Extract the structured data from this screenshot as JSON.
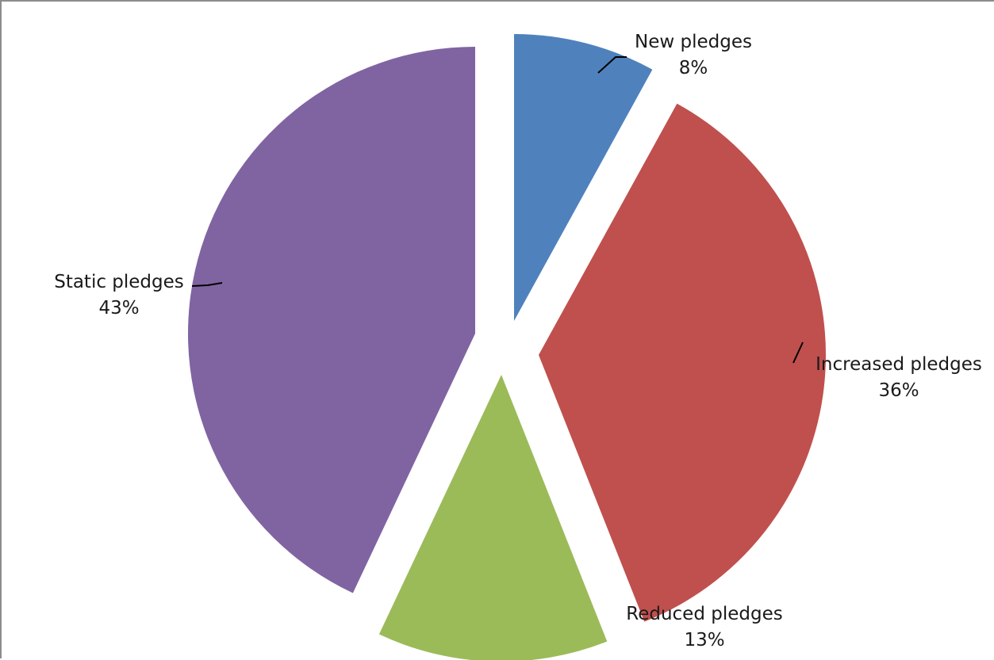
{
  "chart_data": {
    "type": "pie",
    "exploded": true,
    "legend": "none",
    "slices": [
      {
        "label": "New pledges",
        "value": 8,
        "display": "8%",
        "color": "#4f81bd"
      },
      {
        "label": "Increased pledges",
        "value": 36,
        "display": "36%",
        "color": "#c0504d"
      },
      {
        "label": "Reduced pledges",
        "value": 13,
        "display": "13%",
        "color": "#9bbb59"
      },
      {
        "label": "Static pledges",
        "value": 43,
        "display": "43%",
        "color": "#8064a2"
      }
    ]
  }
}
